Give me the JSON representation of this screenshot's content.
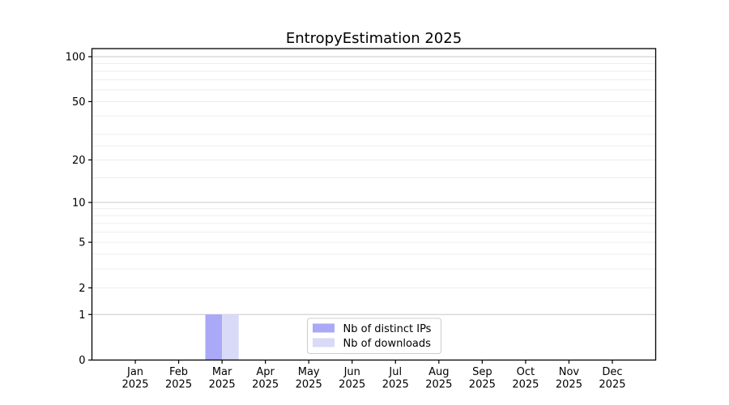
{
  "chart_data": {
    "type": "bar",
    "title": "EntropyEstimation 2025",
    "categories": [
      "Jan",
      "Feb",
      "Mar",
      "Apr",
      "May",
      "Jun",
      "Jul",
      "Aug",
      "Sep",
      "Oct",
      "Nov",
      "Dec"
    ],
    "x_year": "2025",
    "series": [
      {
        "name": "Nb of distinct IPs",
        "color": "#a9a9f7",
        "values": [
          0,
          0,
          1,
          0,
          0,
          0,
          0,
          0,
          0,
          0,
          0,
          0
        ]
      },
      {
        "name": "Nb of downloads",
        "color": "#d9d9f8",
        "values": [
          0,
          0,
          1,
          0,
          0,
          0,
          0,
          0,
          0,
          0,
          0,
          0
        ]
      }
    ],
    "yscale": "log1p",
    "y_ticks": [
      0,
      1,
      2,
      5,
      10,
      20,
      50,
      100
    ],
    "ylim": [
      0,
      113
    ],
    "grid": {
      "major": [
        1,
        10,
        100
      ],
      "minor": [
        2,
        3,
        4,
        5,
        6,
        7,
        8,
        9,
        15,
        20,
        25,
        30,
        40,
        50,
        60,
        70,
        80,
        90
      ]
    },
    "legend": {
      "position": "lower center",
      "entries": [
        "Nb of distinct IPs",
        "Nb of downloads"
      ]
    },
    "colors": {
      "background": "#ffffff",
      "grid_major": "#c9c9c9",
      "grid_minor": "#ededed",
      "spine": "#000000",
      "text": "#000000",
      "legend_border": "#cccccc",
      "legend_bg": "#ffffff"
    }
  }
}
